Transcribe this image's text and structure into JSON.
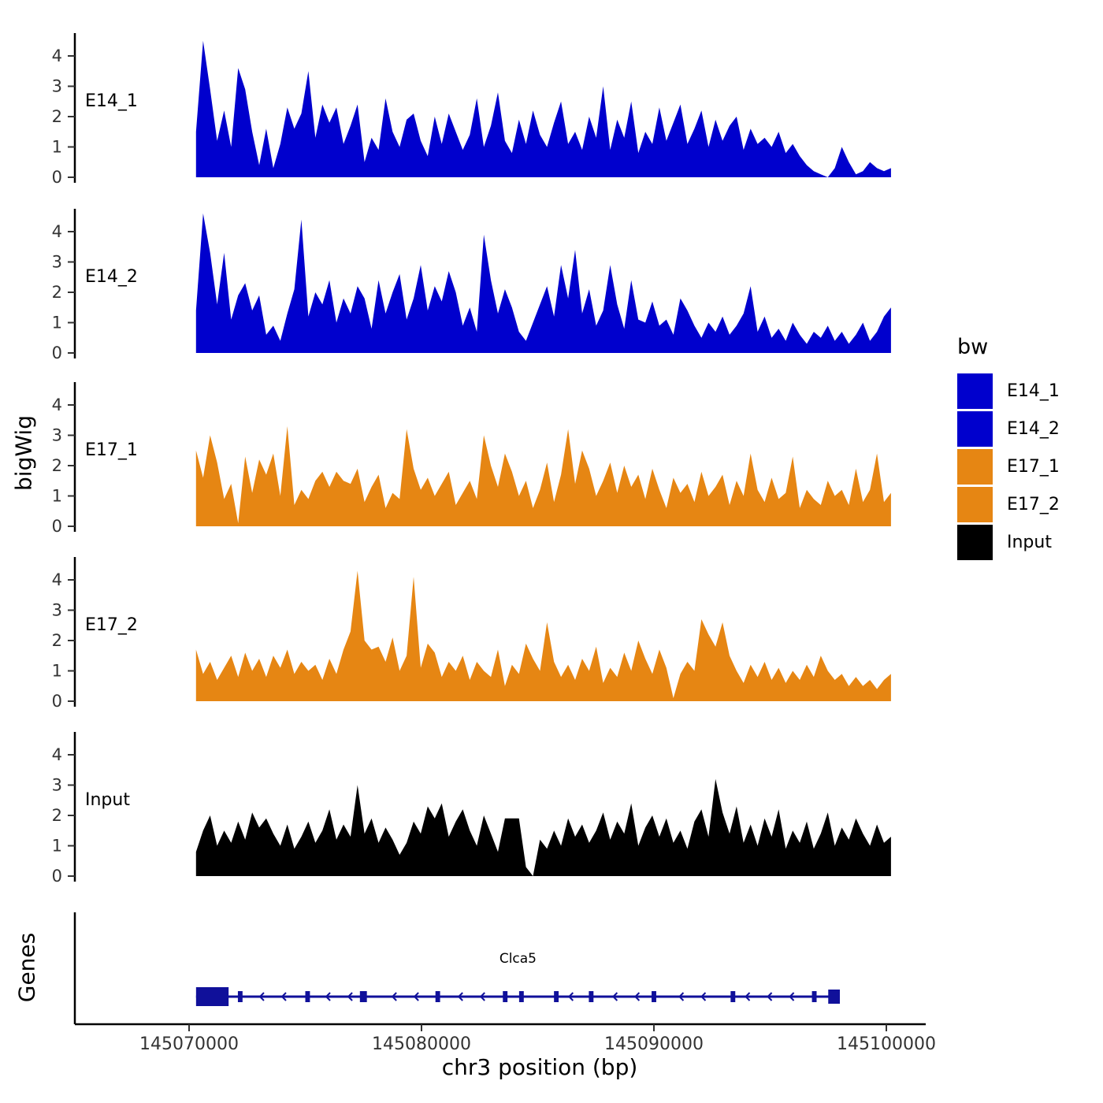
{
  "chart_data": {
    "type": "area",
    "title": "",
    "xlabel": "chr3 position (bp)",
    "ylabel": "bigWig",
    "genes_label": "Genes",
    "grid": "off",
    "legend_position": "right",
    "x_axis": {
      "start_bp": 145070000,
      "end_bp": 145100000,
      "ticks": [
        {
          "bp": 145070000,
          "label": "145070000"
        },
        {
          "bp": 145080000,
          "label": "145080000"
        },
        {
          "bp": 145090000,
          "label": "145090000"
        },
        {
          "bp": 145100000,
          "label": "145100000"
        }
      ]
    },
    "y_ticks": [
      0,
      1,
      2,
      3,
      4
    ],
    "ylim": [
      0,
      4.7
    ],
    "signal_start_bp": 145070300,
    "signal_end_bp": 145100200,
    "tracks": [
      {
        "name": "E14_1",
        "color": "#0000CD",
        "values": [
          1.5,
          4.5,
          2.9,
          1.2,
          2.2,
          1.0,
          3.6,
          2.9,
          1.5,
          0.4,
          1.6,
          0.3,
          1.1,
          2.3,
          1.6,
          2.1,
          3.5,
          1.3,
          2.4,
          1.8,
          2.3,
          1.1,
          1.7,
          2.4,
          0.5,
          1.3,
          0.9,
          2.6,
          1.5,
          1.0,
          1.9,
          2.1,
          1.2,
          0.7,
          2.0,
          1.1,
          2.1,
          1.5,
          0.9,
          1.4,
          2.6,
          1.0,
          1.7,
          2.8,
          1.2,
          0.8,
          1.9,
          1.1,
          2.2,
          1.4,
          1.0,
          1.8,
          2.5,
          1.1,
          1.5,
          0.9,
          2.0,
          1.3,
          3.0,
          0.9,
          1.9,
          1.3,
          2.5,
          0.8,
          1.5,
          1.1,
          2.3,
          1.2,
          1.8,
          2.4,
          1.1,
          1.6,
          2.2,
          1.0,
          1.9,
          1.2,
          1.7,
          2.0,
          0.9,
          1.6,
          1.1,
          1.3,
          1.0,
          1.5,
          0.8,
          1.1,
          0.7,
          0.4,
          0.2,
          0.1,
          0.0,
          0.3,
          1.0,
          0.5,
          0.1,
          0.2,
          0.5,
          0.3,
          0.2,
          0.3
        ]
      },
      {
        "name": "E14_2",
        "color": "#0000CD",
        "values": [
          1.4,
          4.6,
          3.3,
          1.6,
          3.3,
          1.1,
          1.9,
          2.3,
          1.4,
          1.9,
          0.6,
          0.9,
          0.4,
          1.3,
          2.1,
          4.4,
          1.2,
          2.0,
          1.6,
          2.4,
          1.0,
          1.8,
          1.3,
          2.2,
          1.8,
          0.8,
          2.4,
          1.3,
          2.0,
          2.6,
          1.1,
          1.8,
          2.9,
          1.4,
          2.2,
          1.7,
          2.7,
          2.0,
          0.9,
          1.5,
          0.7,
          3.9,
          2.4,
          1.3,
          2.1,
          1.5,
          0.7,
          0.4,
          1.0,
          1.6,
          2.2,
          1.2,
          2.9,
          1.8,
          3.4,
          1.3,
          2.1,
          0.9,
          1.4,
          2.9,
          1.6,
          0.8,
          2.4,
          1.1,
          1.0,
          1.7,
          0.9,
          1.1,
          0.6,
          1.8,
          1.4,
          0.9,
          0.5,
          1.0,
          0.7,
          1.2,
          0.6,
          0.9,
          1.3,
          2.2,
          0.7,
          1.2,
          0.5,
          0.8,
          0.4,
          1.0,
          0.6,
          0.3,
          0.7,
          0.5,
          0.9,
          0.4,
          0.7,
          0.3,
          0.6,
          1.0,
          0.4,
          0.7,
          1.2,
          1.5
        ]
      },
      {
        "name": "E17_1",
        "color": "#E68613",
        "values": [
          2.5,
          1.6,
          3.0,
          2.1,
          0.9,
          1.4,
          0.1,
          2.3,
          1.1,
          2.2,
          1.7,
          2.4,
          1.0,
          3.3,
          0.7,
          1.2,
          0.9,
          1.5,
          1.8,
          1.3,
          1.8,
          1.5,
          1.4,
          1.9,
          0.8,
          1.3,
          1.7,
          0.6,
          1.1,
          0.9,
          3.2,
          1.9,
          1.2,
          1.6,
          1.0,
          1.4,
          1.8,
          0.7,
          1.1,
          1.5,
          0.9,
          3.0,
          2.0,
          1.3,
          2.4,
          1.8,
          1.0,
          1.5,
          0.6,
          1.2,
          2.1,
          0.8,
          1.7,
          3.2,
          1.4,
          2.5,
          1.9,
          1.0,
          1.5,
          2.1,
          1.1,
          2.0,
          1.3,
          1.7,
          0.9,
          1.9,
          1.2,
          0.6,
          1.6,
          1.1,
          1.4,
          0.8,
          1.8,
          1.0,
          1.3,
          1.7,
          0.7,
          1.5,
          1.0,
          2.4,
          1.2,
          0.8,
          1.6,
          0.9,
          1.1,
          2.3,
          0.6,
          1.2,
          0.9,
          0.7,
          1.5,
          1.0,
          1.2,
          0.7,
          1.9,
          0.8,
          1.2,
          2.4,
          0.8,
          1.1
        ]
      },
      {
        "name": "E17_2",
        "color": "#E68613",
        "values": [
          1.7,
          0.9,
          1.3,
          0.7,
          1.1,
          1.5,
          0.8,
          1.6,
          1.0,
          1.4,
          0.8,
          1.5,
          1.1,
          1.7,
          0.9,
          1.3,
          1.0,
          1.2,
          0.7,
          1.4,
          0.9,
          1.7,
          2.3,
          4.3,
          2.0,
          1.7,
          1.8,
          1.3,
          2.1,
          1.0,
          1.5,
          4.1,
          1.1,
          1.9,
          1.6,
          0.8,
          1.3,
          1.0,
          1.5,
          0.7,
          1.3,
          1.0,
          0.8,
          1.7,
          0.5,
          1.2,
          0.9,
          1.9,
          1.4,
          1.0,
          2.6,
          1.3,
          0.8,
          1.2,
          0.7,
          1.4,
          1.0,
          1.8,
          0.6,
          1.1,
          0.8,
          1.6,
          1.0,
          2.0,
          1.4,
          0.9,
          1.7,
          1.1,
          0.1,
          0.9,
          1.3,
          1.0,
          2.7,
          2.2,
          1.8,
          2.6,
          1.5,
          1.0,
          0.6,
          1.2,
          0.8,
          1.3,
          0.7,
          1.1,
          0.6,
          1.0,
          0.7,
          1.2,
          0.8,
          1.5,
          1.0,
          0.7,
          0.9,
          0.5,
          0.8,
          0.5,
          0.7,
          0.4,
          0.7,
          0.9
        ]
      },
      {
        "name": "Input",
        "color": "#000000",
        "values": [
          0.8,
          1.5,
          2.0,
          1.0,
          1.5,
          1.1,
          1.8,
          1.2,
          2.1,
          1.6,
          1.9,
          1.4,
          1.0,
          1.7,
          0.9,
          1.3,
          1.8,
          1.1,
          1.5,
          2.2,
          1.2,
          1.7,
          1.3,
          3.0,
          1.4,
          1.9,
          1.1,
          1.6,
          1.2,
          0.7,
          1.1,
          1.8,
          1.4,
          2.3,
          1.9,
          2.4,
          1.3,
          1.8,
          2.2,
          1.5,
          1.0,
          2.0,
          1.4,
          0.8,
          1.9,
          1.9,
          1.9,
          0.3,
          0.0,
          1.2,
          0.9,
          1.5,
          1.0,
          1.9,
          1.3,
          1.7,
          1.1,
          1.5,
          2.1,
          1.2,
          1.8,
          1.4,
          2.4,
          1.0,
          1.6,
          2.0,
          1.3,
          1.9,
          1.1,
          1.5,
          0.9,
          1.8,
          2.2,
          1.3,
          3.2,
          2.1,
          1.4,
          2.3,
          1.1,
          1.7,
          1.0,
          1.9,
          1.3,
          2.2,
          0.9,
          1.5,
          1.1,
          1.8,
          0.9,
          1.4,
          2.1,
          1.0,
          1.6,
          1.2,
          1.9,
          1.4,
          1.0,
          1.7,
          1.1,
          1.3
        ]
      }
    ],
    "legend": {
      "title": "bw",
      "items": [
        {
          "label": "E14_1",
          "color": "#0000CD"
        },
        {
          "label": "E14_2",
          "color": "#0000CD"
        },
        {
          "label": "E17_1",
          "color": "#E68613"
        },
        {
          "label": "E17_2",
          "color": "#E68613"
        },
        {
          "label": "Input",
          "color": "#000000"
        }
      ]
    },
    "gene": {
      "name": "Clca5",
      "strand": "-",
      "color": "#10109A",
      "start_bp": 145070300,
      "end_bp": 145098000,
      "exons": [
        [
          145070300,
          145071700
        ],
        [
          145072100,
          145072300
        ],
        [
          145075000,
          145075200
        ],
        [
          145077350,
          145077650
        ],
        [
          145080600,
          145080800
        ],
        [
          145083500,
          145083700
        ],
        [
          145084200,
          145084400
        ],
        [
          145085700,
          145085900
        ],
        [
          145087200,
          145087400
        ],
        [
          145089900,
          145090100
        ],
        [
          145093300,
          145093500
        ],
        [
          145096800,
          145097000
        ],
        [
          145097500,
          145098000
        ]
      ]
    }
  }
}
